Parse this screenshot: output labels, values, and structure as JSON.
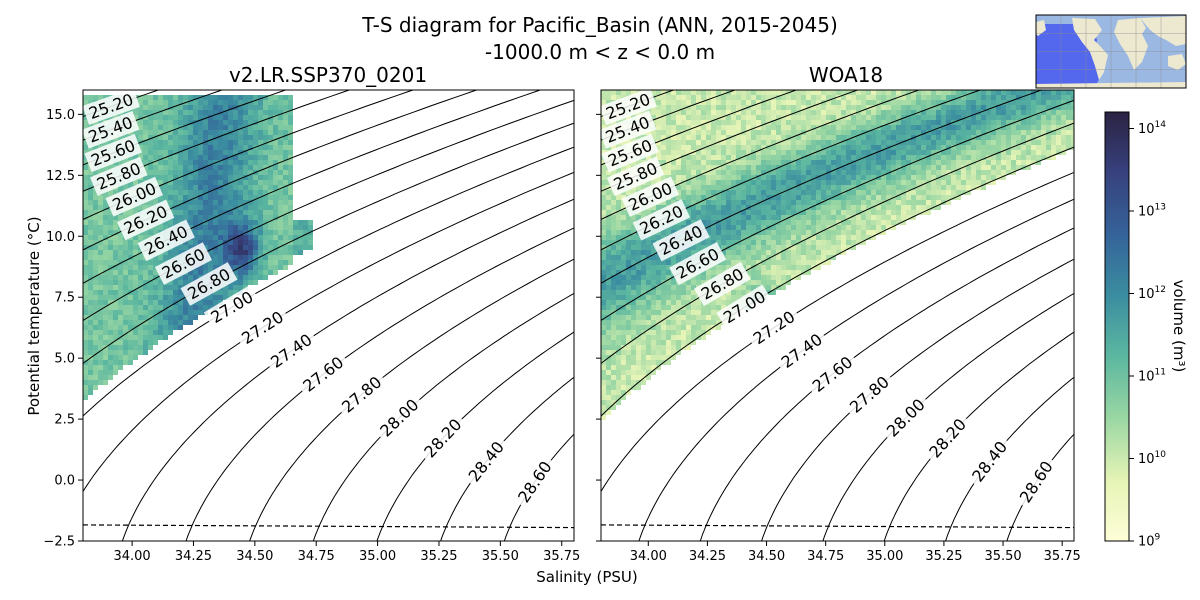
{
  "title_line1": "T-S diagram for Pacific_Basin (ANN, 2015-2045)",
  "title_line2": "-1000.0 m < z < 0.0 m",
  "chart_data": [
    {
      "type": "heatmap",
      "title": "v2.LR.SSP370_0201",
      "xlabel": "Salinity (PSU)",
      "ylabel": "Potential temperature (°C)",
      "xlim": [
        33.8,
        35.8
      ],
      "ylim": [
        -2.5,
        16.0
      ],
      "xticks": [
        "34.00",
        "34.25",
        "34.50",
        "34.75",
        "35.00",
        "35.25",
        "35.50",
        "35.75"
      ],
      "yticks": [
        "−2.5",
        "0.0",
        "2.5",
        "5.0",
        "7.5",
        "10.0",
        "12.5",
        "15.0"
      ],
      "density_contours": [
        "25.20",
        "25.40",
        "25.60",
        "25.80",
        "26.00",
        "26.20",
        "26.40",
        "26.60",
        "26.80",
        "27.00",
        "27.20",
        "27.40",
        "27.60",
        "27.80",
        "28.00",
        "28.20",
        "28.40",
        "28.60"
      ],
      "freezing_line": [
        [
          33.8,
          -1.84
        ],
        [
          35.8,
          -1.95
        ]
      ]
    },
    {
      "type": "heatmap",
      "title": "WOA18",
      "xlabel": "Salinity (PSU)",
      "xlim": [
        33.8,
        35.8
      ],
      "ylim": [
        -2.5,
        16.0
      ],
      "xticks": [
        "34.00",
        "34.25",
        "34.50",
        "34.75",
        "35.00",
        "35.25",
        "35.50",
        "35.75"
      ],
      "density_contours": [
        "25.20",
        "25.40",
        "25.60",
        "25.80",
        "26.00",
        "26.20",
        "26.40",
        "26.60",
        "26.80",
        "27.00",
        "27.20",
        "27.40",
        "27.60",
        "27.80",
        "28.00",
        "28.20",
        "28.40",
        "28.60"
      ],
      "freezing_line": [
        [
          33.8,
          -1.84
        ],
        [
          35.8,
          -1.95
        ]
      ]
    }
  ],
  "colorbar": {
    "label": "volume (m³)",
    "scale": "log",
    "ticks": [
      9,
      10,
      11,
      12,
      13,
      14
    ],
    "range": [
      9,
      14.2
    ],
    "colormap_stops": [
      "#fefed8",
      "#e6f4b6",
      "#98d6a3",
      "#5cb7a0",
      "#3b8ea0",
      "#35649a",
      "#37417d",
      "#2b2343"
    ]
  },
  "colors": {
    "axes": "#000000",
    "contour": "#000000",
    "background": "#ffffff"
  },
  "inset_map": {
    "ocean": "#9bb8e3",
    "land": "#ede8d0",
    "region": "#5468ee"
  }
}
